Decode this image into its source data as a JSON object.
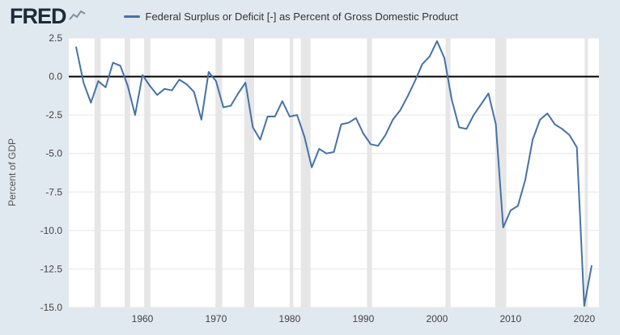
{
  "header": {
    "logo": "FRED",
    "legend_label": "Federal Surplus or Deficit [-] as Percent of Gross Domestic Product"
  },
  "chart_data": {
    "type": "line",
    "title": "",
    "xlabel": "",
    "ylabel": "Percent of GDP",
    "legend_position": "top",
    "grid": "horizontal",
    "line_color": "#4572a7",
    "zero_line_color": "#000000",
    "grid_color": "#e6e6e6",
    "tick_color": "#424242",
    "background_outer": "#e1e9f0",
    "background_plot": "#ffffff",
    "recession_band_color": "#e6e6e6",
    "x_range": [
      1950,
      2022
    ],
    "y_range": [
      -15.0,
      2.5
    ],
    "y_ticks": [
      2.5,
      0.0,
      -2.5,
      -5.0,
      -7.5,
      -10.0,
      -12.5,
      -15.0
    ],
    "x_ticks": [
      1960,
      1970,
      1980,
      1990,
      2000,
      2010,
      2020
    ],
    "recessions": [
      [
        1953.5,
        1954.33
      ],
      [
        1957.58,
        1958.33
      ],
      [
        1960.25,
        1961.08
      ],
      [
        1969.92,
        1970.83
      ],
      [
        1973.83,
        1975.17
      ],
      [
        1980.0,
        1980.5
      ],
      [
        1981.5,
        1982.83
      ],
      [
        1990.5,
        1991.17
      ],
      [
        2001.17,
        2001.83
      ],
      [
        2007.92,
        2009.42
      ],
      [
        2020.05,
        2020.5
      ]
    ],
    "series": [
      {
        "name": "Federal Surplus or Deficit [-] as Percent of Gross Domestic Product",
        "x": [
          1951,
          1952,
          1953,
          1954,
          1955,
          1956,
          1957,
          1958,
          1959,
          1960,
          1961,
          1962,
          1963,
          1964,
          1965,
          1966,
          1967,
          1968,
          1969,
          1970,
          1971,
          1972,
          1973,
          1974,
          1975,
          1976,
          1977,
          1978,
          1979,
          1980,
          1981,
          1982,
          1983,
          1984,
          1985,
          1986,
          1987,
          1988,
          1989,
          1990,
          1991,
          1992,
          1993,
          1994,
          1995,
          1996,
          1997,
          1998,
          1999,
          2000,
          2001,
          2002,
          2003,
          2004,
          2005,
          2006,
          2007,
          2008,
          2009,
          2010,
          2011,
          2012,
          2013,
          2014,
          2015,
          2016,
          2017,
          2018,
          2019,
          2020,
          2021
        ],
        "values": [
          1.9,
          -0.4,
          -1.7,
          -0.3,
          -0.7,
          0.9,
          0.7,
          -0.6,
          -2.5,
          0.1,
          -0.6,
          -1.2,
          -0.8,
          -0.9,
          -0.2,
          -0.5,
          -1.0,
          -2.8,
          0.3,
          -0.3,
          -2.0,
          -1.9,
          -1.1,
          -0.4,
          -3.3,
          -4.1,
          -2.6,
          -2.6,
          -1.6,
          -2.6,
          -2.5,
          -3.9,
          -5.9,
          -4.7,
          -5.0,
          -4.9,
          -3.1,
          -3.0,
          -2.7,
          -3.7,
          -4.4,
          -4.5,
          -3.8,
          -2.8,
          -2.2,
          -1.3,
          -0.3,
          0.8,
          1.3,
          2.3,
          1.2,
          -1.5,
          -3.3,
          -3.4,
          -2.5,
          -1.8,
          -1.1,
          -3.1,
          -9.8,
          -8.7,
          -8.4,
          -6.7,
          -4.1,
          -2.8,
          -2.4,
          -3.1,
          -3.4,
          -3.8,
          -4.6,
          -14.9,
          -12.3
        ]
      }
    ]
  }
}
